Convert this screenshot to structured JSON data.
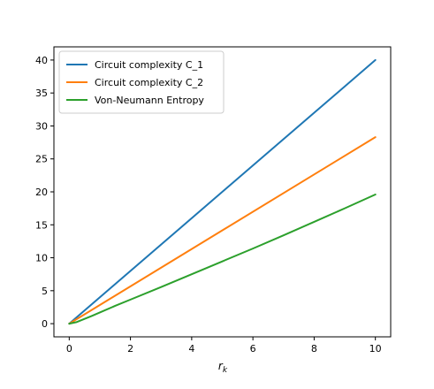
{
  "chart_data": {
    "type": "line",
    "title": "",
    "xlabel": "r_k",
    "ylabel": "",
    "xlim": [
      -0.5,
      10.5
    ],
    "ylim": [
      -2,
      42
    ],
    "xticks": [
      0,
      2,
      4,
      6,
      8,
      10
    ],
    "yticks": [
      0,
      5,
      10,
      15,
      20,
      25,
      30,
      35,
      40
    ],
    "grid": false,
    "legend_position": "top-left",
    "series": [
      {
        "name": "Circuit complexity C_1",
        "color": "#1f77b4",
        "x": [
          0,
          10
        ],
        "y": [
          0,
          40
        ]
      },
      {
        "name": "Circuit complexity C_2",
        "color": "#ff7f0e",
        "x": [
          0,
          10
        ],
        "y": [
          0,
          28.3
        ]
      },
      {
        "name": "Von-Neumann Entropy",
        "color": "#2ca02c",
        "x": [
          0,
          0.25,
          0.5,
          0.75,
          1,
          1.5,
          2,
          3,
          4,
          5,
          6,
          7,
          8,
          9,
          10
        ],
        "y": [
          0,
          0.25,
          0.72,
          1.2,
          1.7,
          2.7,
          3.65,
          5.55,
          7.5,
          9.45,
          11.4,
          13.4,
          15.45,
          17.5,
          19.6
        ]
      }
    ]
  }
}
